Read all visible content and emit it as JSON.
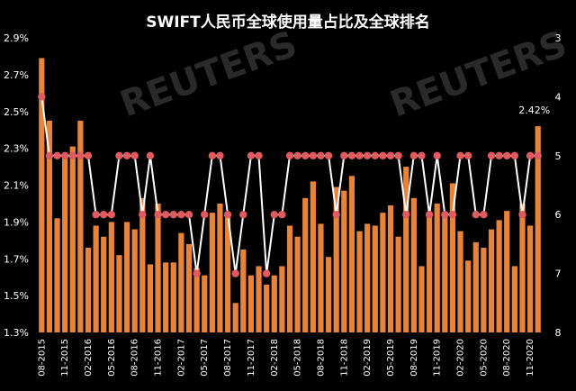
{
  "chart_data": {
    "type": "bar+line",
    "title": "SWIFT人民币全球使用量占比及全球排名",
    "watermark": "REUTERS",
    "colors": {
      "bar": "#E8833A",
      "line": "#ffffff",
      "marker": "#E05A5F",
      "background": "#000000"
    },
    "y_left": {
      "ticks": [
        "1.3%",
        "1.5%",
        "1.7%",
        "1.9%",
        "2.1%",
        "2.3%",
        "2.5%",
        "2.7%",
        "2.9%"
      ],
      "ylim": [
        1.3,
        2.9
      ]
    },
    "y_right": {
      "ticks": [
        "3",
        "4",
        "5",
        "6",
        "7",
        "8"
      ],
      "ylim": [
        3,
        8
      ],
      "inverted": true
    },
    "x_ticks": [
      "08-2015",
      "11-2015",
      "02-2016",
      "05-2016",
      "08-2016",
      "11-2016",
      "02-2017",
      "05-2017",
      "08-2017",
      "11-2017",
      "02-2018",
      "05-2018",
      "08-2018",
      "11-2018",
      "02-2019",
      "05-2019",
      "08-2019",
      "11-2019",
      "02-2020",
      "05-2020",
      "08-2020",
      "11-2020"
    ],
    "annotation": "2.42%",
    "series": [
      {
        "kind": "bar",
        "axis": "left",
        "values": [
          2.79,
          2.45,
          1.92,
          2.26,
          2.31,
          2.45,
          1.76,
          1.88,
          1.82,
          1.9,
          1.72,
          1.9,
          1.86,
          2.03,
          1.67,
          2.0,
          1.68,
          1.68,
          1.84,
          1.78,
          1.65,
          1.61,
          1.95,
          2.0,
          1.95,
          1.46,
          1.75,
          1.61,
          1.66,
          1.56,
          1.61,
          1.66,
          1.88,
          1.82,
          2.03,
          2.12,
          1.89,
          1.71,
          2.09,
          2.07,
          2.15,
          1.85,
          1.89,
          1.88,
          1.95,
          1.99,
          1.82,
          2.2,
          2.03,
          1.66,
          1.94,
          2.0,
          1.93,
          2.11,
          1.85,
          1.69,
          1.79,
          1.76,
          1.86,
          1.91,
          1.96,
          1.66,
          2.0,
          1.88,
          2.42
        ]
      },
      {
        "kind": "line",
        "axis": "right",
        "values": [
          4,
          5,
          5,
          5,
          5,
          5,
          5,
          6,
          6,
          6,
          5,
          5,
          5,
          6,
          5,
          6,
          6,
          6,
          6,
          6,
          7,
          6,
          5,
          5,
          6,
          7,
          6,
          5,
          5,
          7,
          6,
          6,
          5,
          5,
          5,
          5,
          5,
          5,
          6,
          5,
          5,
          5,
          5,
          5,
          5,
          5,
          5,
          6,
          5,
          5,
          6,
          5,
          6,
          6,
          5,
          5,
          6,
          6,
          5,
          5,
          5,
          5,
          6,
          5,
          5
        ]
      }
    ]
  }
}
